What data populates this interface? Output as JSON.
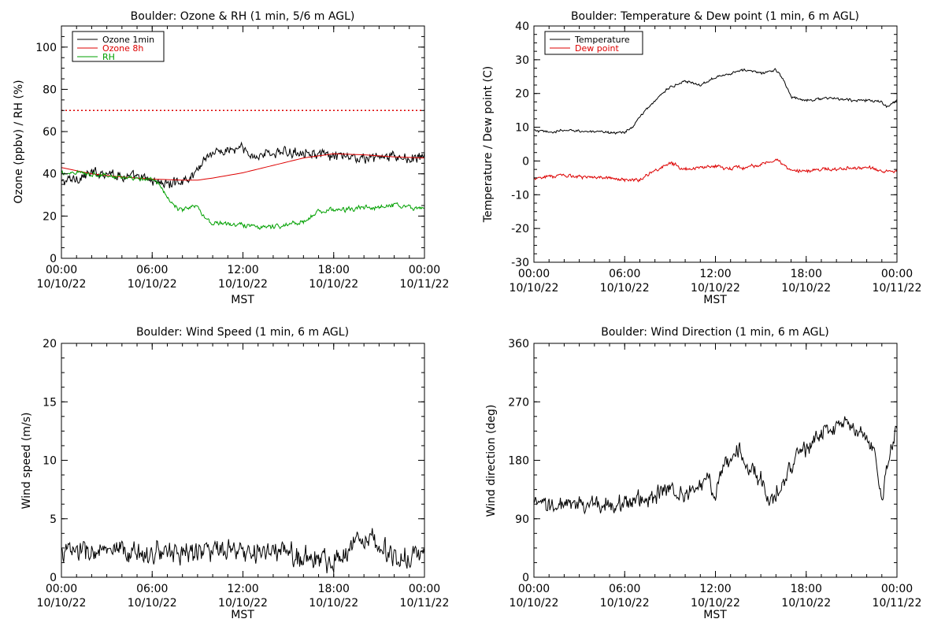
{
  "chart_data": [
    {
      "type": "line",
      "title": "Boulder: Ozone & RH (1 min, 5/6 m AGL)",
      "ylabel": "Ozone (ppbv) / RH (%)",
      "xlabel": "MST",
      "ylim": [
        0,
        110
      ],
      "yticks": [
        0,
        20,
        40,
        60,
        80,
        100
      ],
      "xticks": [
        {
          "h": 0,
          "time": "00:00",
          "date": "10/10/22"
        },
        {
          "h": 6,
          "time": "06:00",
          "date": "10/10/22"
        },
        {
          "h": 12,
          "time": "12:00",
          "date": "10/10/22"
        },
        {
          "h": 18,
          "time": "18:00",
          "date": "10/10/22"
        },
        {
          "h": 24,
          "time": "00:00",
          "date": "10/11/22"
        }
      ],
      "legend_position": "top-left",
      "reference_lines": [
        {
          "y": 70,
          "color": "#dd0000",
          "style": "dotted"
        }
      ],
      "series": [
        {
          "name": "Ozone 1min",
          "color": "#000000",
          "noise": 1.8,
          "x": [
            0,
            1,
            2,
            3,
            4,
            5,
            6,
            6.5,
            7,
            8,
            8.5,
            9,
            9.5,
            10,
            11,
            12,
            12.5,
            13,
            14,
            15,
            16,
            17,
            18,
            19,
            20,
            21,
            22,
            23,
            24
          ],
          "y": [
            36,
            38,
            40,
            41,
            39,
            38,
            37,
            36,
            35,
            37,
            38,
            42,
            48,
            50,
            51,
            52,
            48,
            49,
            50,
            50,
            51,
            49,
            48,
            48,
            47,
            48,
            48,
            47,
            48
          ]
        },
        {
          "name": "Ozone 8h",
          "color": "#dd0000",
          "noise": 0,
          "x": [
            0,
            2,
            4,
            6,
            8,
            9,
            10,
            12,
            14,
            16,
            18,
            20,
            22,
            24
          ],
          "y": [
            43,
            40,
            38.5,
            37.5,
            37,
            37,
            38,
            40.5,
            44,
            47.5,
            49.5,
            49,
            48,
            47.5
          ]
        },
        {
          "name": "RH",
          "color": "#00a000",
          "noise": 0.8,
          "x": [
            0,
            1,
            2,
            3,
            4,
            5,
            6,
            6.5,
            7,
            7.5,
            8,
            9,
            9.5,
            10,
            11,
            12,
            13,
            14,
            15,
            16,
            17,
            18,
            19,
            20,
            21,
            22,
            23,
            24
          ],
          "y": [
            40,
            41,
            40,
            39,
            38.5,
            37,
            38,
            35,
            29,
            24,
            23,
            25,
            19,
            17,
            16,
            16,
            15,
            15,
            16,
            17,
            22,
            23,
            23,
            24,
            24,
            25,
            24,
            24
          ]
        }
      ]
    },
    {
      "type": "line",
      "title": "Boulder: Temperature & Dew point (1 min, 6 m AGL)",
      "ylabel": "Temperature / Dew point (C)",
      "xlabel": "MST",
      "ylim": [
        -30,
        40
      ],
      "yticks": [
        -30,
        -20,
        -10,
        0,
        10,
        20,
        30,
        40
      ],
      "xticks": [
        {
          "h": 0,
          "time": "00:00",
          "date": "10/10/22"
        },
        {
          "h": 6,
          "time": "06:00",
          "date": "10/10/22"
        },
        {
          "h": 12,
          "time": "12:00",
          "date": "10/10/22"
        },
        {
          "h": 18,
          "time": "18:00",
          "date": "10/10/22"
        },
        {
          "h": 24,
          "time": "00:00",
          "date": "10/11/22"
        }
      ],
      "legend_position": "top-left",
      "reference_lines": [],
      "series": [
        {
          "name": "Temperature",
          "color": "#000000",
          "noise": 0.3,
          "x": [
            0,
            1,
            2,
            3,
            4,
            5,
            6,
            6.5,
            7,
            8,
            9,
            10,
            11,
            12,
            13,
            14,
            15,
            16,
            16.5,
            17,
            18,
            19,
            20,
            21,
            22,
            23,
            23.3,
            24
          ],
          "y": [
            9,
            8.5,
            9,
            9,
            8.5,
            8.5,
            8.5,
            10,
            13,
            18,
            22,
            23.5,
            22.5,
            25,
            26,
            27,
            26,
            27,
            24,
            19,
            18,
            18.5,
            18.5,
            18,
            18,
            17.5,
            16,
            18
          ]
        },
        {
          "name": "Dew point",
          "color": "#dd0000",
          "noise": 0.4,
          "x": [
            0,
            1,
            2,
            3,
            4,
            5,
            6,
            7,
            8,
            9,
            10,
            11,
            12,
            13,
            14,
            15,
            16,
            17,
            18,
            19,
            20,
            21,
            22,
            23,
            24
          ],
          "y": [
            -5,
            -4.5,
            -4.5,
            -4.5,
            -5,
            -5,
            -5.5,
            -5.5,
            -3,
            -0.5,
            -2.5,
            -2,
            -1.5,
            -2,
            -2,
            -1,
            0.5,
            -3,
            -3,
            -2.5,
            -2.5,
            -2,
            -2,
            -3,
            -3
          ]
        }
      ]
    },
    {
      "type": "line",
      "title": "Boulder: Wind Speed (1 min, 6 m AGL)",
      "ylabel": "Wind speed (m/s)",
      "xlabel": "MST",
      "ylim": [
        0,
        20
      ],
      "yticks": [
        0,
        5,
        10,
        15,
        20
      ],
      "xticks": [
        {
          "h": 0,
          "time": "00:00",
          "date": "10/10/22"
        },
        {
          "h": 6,
          "time": "06:00",
          "date": "10/10/22"
        },
        {
          "h": 12,
          "time": "12:00",
          "date": "10/10/22"
        },
        {
          "h": 18,
          "time": "18:00",
          "date": "10/10/22"
        },
        {
          "h": 24,
          "time": "00:00",
          "date": "10/11/22"
        }
      ],
      "legend_position": "none",
      "reference_lines": [],
      "series": [
        {
          "name": "",
          "color": "#000000",
          "noise": 0.7,
          "x": [
            0,
            2,
            4,
            6,
            8,
            10,
            12,
            14,
            16,
            17,
            18,
            19,
            20,
            21,
            22,
            23,
            24
          ],
          "y": [
            2.2,
            2.2,
            2.0,
            2.1,
            2.2,
            2.3,
            2.0,
            2.2,
            1.8,
            1.5,
            1.4,
            2.5,
            3.6,
            3.0,
            1.6,
            1.5,
            2.2
          ]
        }
      ]
    },
    {
      "type": "line",
      "title": "Boulder: Wind Direction (1 min, 6 m AGL)",
      "ylabel": "Wind direction (deg)",
      "xlabel": "MST",
      "ylim": [
        0,
        360
      ],
      "yticks": [
        0,
        90,
        180,
        270,
        360
      ],
      "xticks": [
        {
          "h": 0,
          "time": "00:00",
          "date": "10/10/22"
        },
        {
          "h": 6,
          "time": "06:00",
          "date": "10/10/22"
        },
        {
          "h": 12,
          "time": "12:00",
          "date": "10/10/22"
        },
        {
          "h": 18,
          "time": "18:00",
          "date": "10/10/22"
        },
        {
          "h": 24,
          "time": "00:00",
          "date": "10/11/22"
        }
      ],
      "legend_position": "none",
      "reference_lines": [],
      "series": [
        {
          "name": "",
          "color": "#000000",
          "noise": 10,
          "x": [
            0,
            2,
            4,
            6,
            7,
            8,
            9,
            10,
            11,
            11.5,
            12,
            12.5,
            13,
            13.5,
            14,
            15,
            15.5,
            16,
            16.5,
            17,
            17.5,
            18,
            19,
            20,
            20.5,
            21,
            21.5,
            22,
            22.5,
            23,
            23.5,
            24
          ],
          "y": [
            110,
            110,
            112,
            115,
            120,
            125,
            135,
            130,
            140,
            150,
            130,
            170,
            180,
            200,
            170,
            150,
            110,
            135,
            140,
            170,
            190,
            200,
            220,
            230,
            235,
            230,
            225,
            210,
            190,
            120,
            190,
            230
          ]
        }
      ]
    }
  ]
}
